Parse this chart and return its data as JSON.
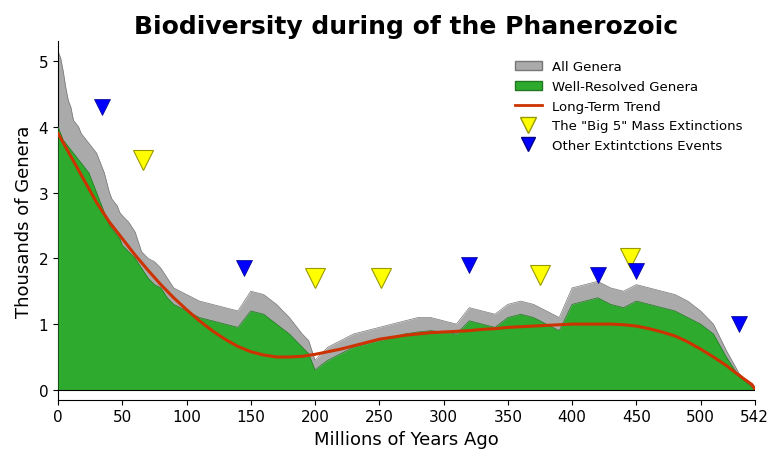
{
  "title": "Biodiversity during of the Phanerozoic",
  "xlabel": "Millions of Years Ago",
  "ylabel": "Thousands of Genera",
  "xlim": [
    0,
    542
  ],
  "ylim": [
    -0.15,
    5.3
  ],
  "xticks": [
    0,
    50,
    100,
    150,
    200,
    250,
    300,
    350,
    400,
    450,
    500,
    542
  ],
  "yticks": [
    0,
    1,
    2,
    3,
    4,
    5
  ],
  "background_color": "#ffffff",
  "gray_color": "#aaaaaa",
  "green_color": "#2eaa2e",
  "trend_color": "#cc3300",
  "all_genera_x": [
    0,
    2,
    4,
    6,
    8,
    10,
    12,
    14,
    16,
    18,
    20,
    22,
    24,
    26,
    28,
    30,
    32,
    34,
    36,
    38,
    40,
    42,
    44,
    46,
    48,
    50,
    55,
    60,
    65,
    70,
    75,
    80,
    85,
    90,
    95,
    100,
    110,
    120,
    130,
    140,
    150,
    160,
    170,
    180,
    190,
    195,
    200,
    205,
    210,
    215,
    220,
    230,
    240,
    250,
    260,
    270,
    280,
    290,
    300,
    310,
    320,
    330,
    340,
    350,
    360,
    370,
    380,
    390,
    400,
    410,
    420,
    430,
    440,
    450,
    460,
    470,
    480,
    490,
    500,
    510,
    520,
    530,
    540,
    542
  ],
  "all_genera_y": [
    5.15,
    5.05,
    4.85,
    4.6,
    4.4,
    4.3,
    4.1,
    4.05,
    4.0,
    3.9,
    3.85,
    3.8,
    3.75,
    3.7,
    3.65,
    3.6,
    3.5,
    3.4,
    3.3,
    3.15,
    3.0,
    2.9,
    2.85,
    2.8,
    2.7,
    2.65,
    2.55,
    2.4,
    2.1,
    2.0,
    1.95,
    1.85,
    1.7,
    1.55,
    1.5,
    1.45,
    1.35,
    1.3,
    1.25,
    1.2,
    1.5,
    1.45,
    1.3,
    1.1,
    0.85,
    0.75,
    0.45,
    0.55,
    0.65,
    0.7,
    0.75,
    0.85,
    0.9,
    0.95,
    1.0,
    1.05,
    1.1,
    1.1,
    1.05,
    1.0,
    1.25,
    1.2,
    1.15,
    1.3,
    1.35,
    1.3,
    1.2,
    1.1,
    1.55,
    1.6,
    1.65,
    1.55,
    1.5,
    1.6,
    1.55,
    1.5,
    1.45,
    1.35,
    1.2,
    1.0,
    0.6,
    0.25,
    0.05,
    0.0
  ],
  "green_genera_x": [
    0,
    2,
    4,
    6,
    8,
    10,
    12,
    14,
    16,
    18,
    20,
    22,
    24,
    26,
    28,
    30,
    32,
    34,
    36,
    38,
    40,
    42,
    44,
    46,
    48,
    50,
    55,
    60,
    65,
    70,
    75,
    80,
    85,
    90,
    95,
    100,
    110,
    120,
    130,
    140,
    150,
    160,
    170,
    180,
    190,
    195,
    200,
    205,
    210,
    215,
    220,
    230,
    240,
    250,
    260,
    270,
    280,
    290,
    300,
    310,
    320,
    330,
    340,
    350,
    360,
    370,
    380,
    390,
    400,
    410,
    420,
    430,
    440,
    450,
    460,
    470,
    480,
    490,
    500,
    510,
    520,
    530,
    540,
    542
  ],
  "green_genera_y": [
    4.0,
    3.9,
    3.8,
    3.75,
    3.7,
    3.65,
    3.6,
    3.55,
    3.5,
    3.45,
    3.4,
    3.35,
    3.3,
    3.2,
    3.1,
    3.0,
    2.9,
    2.8,
    2.7,
    2.6,
    2.5,
    2.45,
    2.4,
    2.35,
    2.3,
    2.2,
    2.1,
    2.0,
    1.85,
    1.7,
    1.6,
    1.55,
    1.4,
    1.3,
    1.25,
    1.2,
    1.1,
    1.05,
    1.0,
    0.95,
    1.2,
    1.15,
    1.0,
    0.85,
    0.65,
    0.55,
    0.3,
    0.38,
    0.45,
    0.5,
    0.55,
    0.65,
    0.7,
    0.75,
    0.8,
    0.85,
    0.88,
    0.9,
    0.88,
    0.85,
    1.05,
    1.0,
    0.95,
    1.1,
    1.15,
    1.1,
    1.0,
    0.9,
    1.3,
    1.35,
    1.4,
    1.3,
    1.25,
    1.35,
    1.3,
    1.25,
    1.2,
    1.1,
    1.0,
    0.85,
    0.5,
    0.2,
    0.04,
    0.0
  ],
  "trend_x": [
    0,
    10,
    20,
    30,
    40,
    50,
    60,
    70,
    80,
    90,
    100,
    110,
    120,
    130,
    140,
    150,
    160,
    170,
    180,
    190,
    200,
    210,
    220,
    230,
    240,
    250,
    260,
    270,
    280,
    290,
    300,
    310,
    320,
    330,
    340,
    350,
    360,
    370,
    380,
    390,
    400,
    410,
    420,
    430,
    440,
    450,
    460,
    470,
    480,
    490,
    500,
    510,
    520,
    530,
    540,
    542
  ],
  "trend_y": [
    3.9,
    3.55,
    3.2,
    2.85,
    2.55,
    2.3,
    2.05,
    1.82,
    1.6,
    1.4,
    1.22,
    1.05,
    0.9,
    0.77,
    0.66,
    0.58,
    0.53,
    0.5,
    0.5,
    0.51,
    0.54,
    0.58,
    0.62,
    0.67,
    0.72,
    0.77,
    0.8,
    0.83,
    0.85,
    0.87,
    0.88,
    0.89,
    0.9,
    0.92,
    0.93,
    0.95,
    0.96,
    0.97,
    0.98,
    0.99,
    1.0,
    1.0,
    1.0,
    1.0,
    0.99,
    0.97,
    0.93,
    0.88,
    0.82,
    0.73,
    0.62,
    0.5,
    0.37,
    0.22,
    0.08,
    0.02
  ],
  "big5_x": [
    66,
    200,
    251,
    375,
    445
  ],
  "big5_y": [
    3.5,
    1.7,
    1.7,
    1.75,
    2.0
  ],
  "other_ext_x": [
    34,
    145,
    320,
    420,
    450,
    530
  ],
  "other_ext_y": [
    4.3,
    1.85,
    1.9,
    1.75,
    1.8,
    1.0
  ],
  "legend_items": [
    "All Genera",
    "Well-Resolved Genera",
    "Long-Term Trend",
    "The \"Big 5\" Mass Extinctions",
    "Other Extintctions Events"
  ],
  "title_fontsize": 18,
  "axis_fontsize": 13,
  "tick_fontsize": 11
}
